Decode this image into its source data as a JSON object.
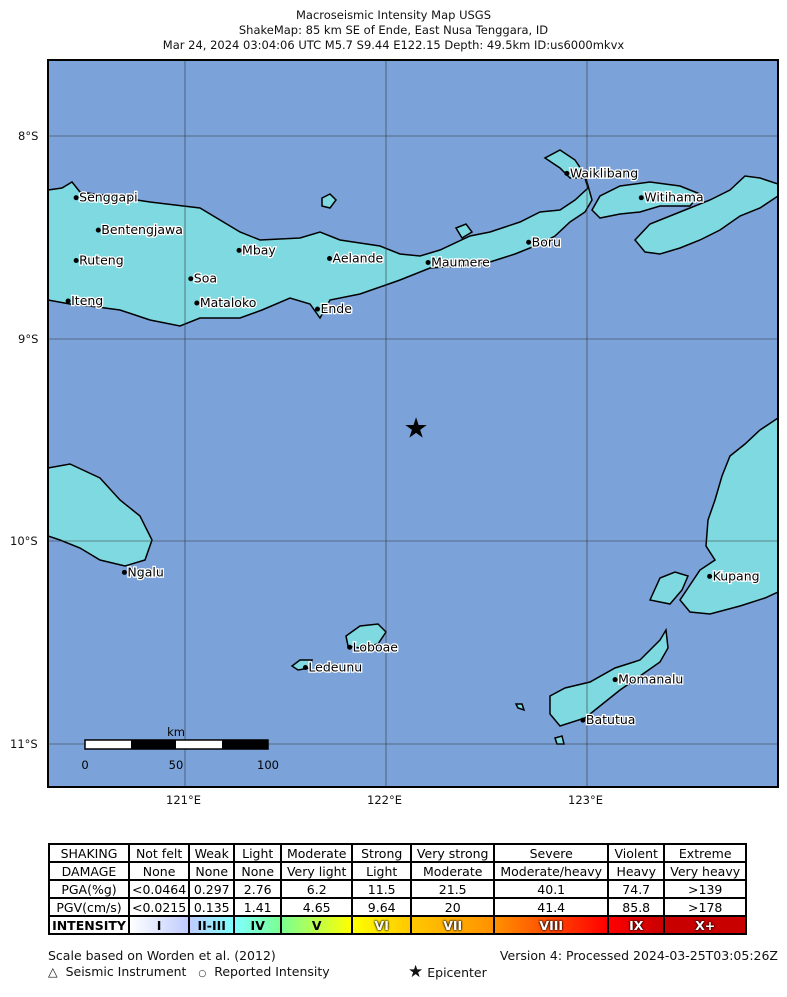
{
  "title": {
    "line1": "Macroseismic Intensity Map USGS",
    "line2": "ShakeMap: 85 km SE of Ende, East Nusa Tenggara, ID",
    "line3": "Mar 24, 2024 03:04:06 UTC M5.7 S9.44 E122.15 Depth: 49.5km ID:us6000mkvx"
  },
  "map": {
    "lon_range": [
      120.32,
      123.95
    ],
    "lat_range": [
      -11.21,
      -7.62
    ],
    "water_color": "#7ba3d9",
    "land_color": "#7fd9e0",
    "lat_ticks": [
      {
        "value": -8,
        "label": "8°S"
      },
      {
        "value": -9,
        "label": "9°S"
      },
      {
        "value": -10,
        "label": "10°S"
      },
      {
        "value": -11,
        "label": "11°S"
      }
    ],
    "lon_ticks": [
      {
        "value": 121,
        "label": "121°E"
      },
      {
        "value": 122,
        "label": "122°E"
      },
      {
        "value": 123,
        "label": "123°E"
      }
    ],
    "epicenter": {
      "lon": 122.15,
      "lat": -9.44,
      "icon": "star-icon"
    },
    "cities": [
      {
        "name": "Senggapi",
        "lon": 120.46,
        "lat": -8.3
      },
      {
        "name": "Bentengjawa",
        "lon": 120.57,
        "lat": -8.46
      },
      {
        "name": "Ruteng",
        "lon": 120.46,
        "lat": -8.61
      },
      {
        "name": "Iteng",
        "lon": 120.42,
        "lat": -8.81
      },
      {
        "name": "Mbay",
        "lon": 121.27,
        "lat": -8.56
      },
      {
        "name": "Soa",
        "lon": 121.03,
        "lat": -8.7
      },
      {
        "name": "Mataloko",
        "lon": 121.06,
        "lat": -8.82
      },
      {
        "name": "Aelande",
        "lon": 121.72,
        "lat": -8.6
      },
      {
        "name": "Ende",
        "lon": 121.66,
        "lat": -8.85
      },
      {
        "name": "Maumere",
        "lon": 122.21,
        "lat": -8.62
      },
      {
        "name": "Boru",
        "lon": 122.71,
        "lat": -8.52
      },
      {
        "name": "Waiklibang",
        "lon": 122.9,
        "lat": -8.18
      },
      {
        "name": "Witihama",
        "lon": 123.27,
        "lat": -8.3
      },
      {
        "name": "Ngalu",
        "lon": 120.7,
        "lat": -10.15
      },
      {
        "name": "Kupang",
        "lon": 123.61,
        "lat": -10.17
      },
      {
        "name": "Loboae",
        "lon": 121.82,
        "lat": -10.52
      },
      {
        "name": "Ledeunu",
        "lon": 121.6,
        "lat": -10.62
      },
      {
        "name": "Momanalu",
        "lon": 123.14,
        "lat": -10.68
      },
      {
        "name": "Batutua",
        "lon": 122.98,
        "lat": -10.88
      }
    ],
    "scale_bar": {
      "unit": "km",
      "labels": [
        "0",
        "50",
        "100"
      ]
    }
  },
  "legend": {
    "rows": [
      [
        "SHAKING",
        "Not felt",
        "Weak",
        "Light",
        "Moderate",
        "Strong",
        "Very strong",
        "Severe",
        "Violent",
        "Extreme"
      ],
      [
        "DAMAGE",
        "None",
        "None",
        "None",
        "Very light",
        "Light",
        "Moderate",
        "Moderate/heavy",
        "Heavy",
        "Very heavy"
      ],
      [
        "PGA(%g)",
        "<0.0464",
        "0.297",
        "2.76",
        "6.2",
        "11.5",
        "21.5",
        "40.1",
        "74.7",
        ">139"
      ],
      [
        "PGV(cm/s)",
        "<0.0215",
        "0.135",
        "1.41",
        "4.65",
        "9.64",
        "20",
        "41.4",
        "85.8",
        ">178"
      ],
      [
        "INTENSITY",
        "I",
        "II-III",
        "IV",
        "V",
        "VI",
        "VII",
        "VIII",
        "IX",
        "X+"
      ]
    ],
    "intensity_colors": [
      "#ffffff",
      "#bfccff",
      "#80ffff",
      "#7aff93",
      "#ffff00",
      "#ffc800",
      "#ff9100",
      "#ff0000",
      "#c80000"
    ]
  },
  "footer": {
    "scale_note": "Scale based on Worden et al. (2012)",
    "version": "Version 4: Processed 2024-03-25T03:05:26Z",
    "seismic_instrument": "Seismic Instrument",
    "reported_intensity": "Reported Intensity",
    "epicenter": "Epicenter"
  }
}
